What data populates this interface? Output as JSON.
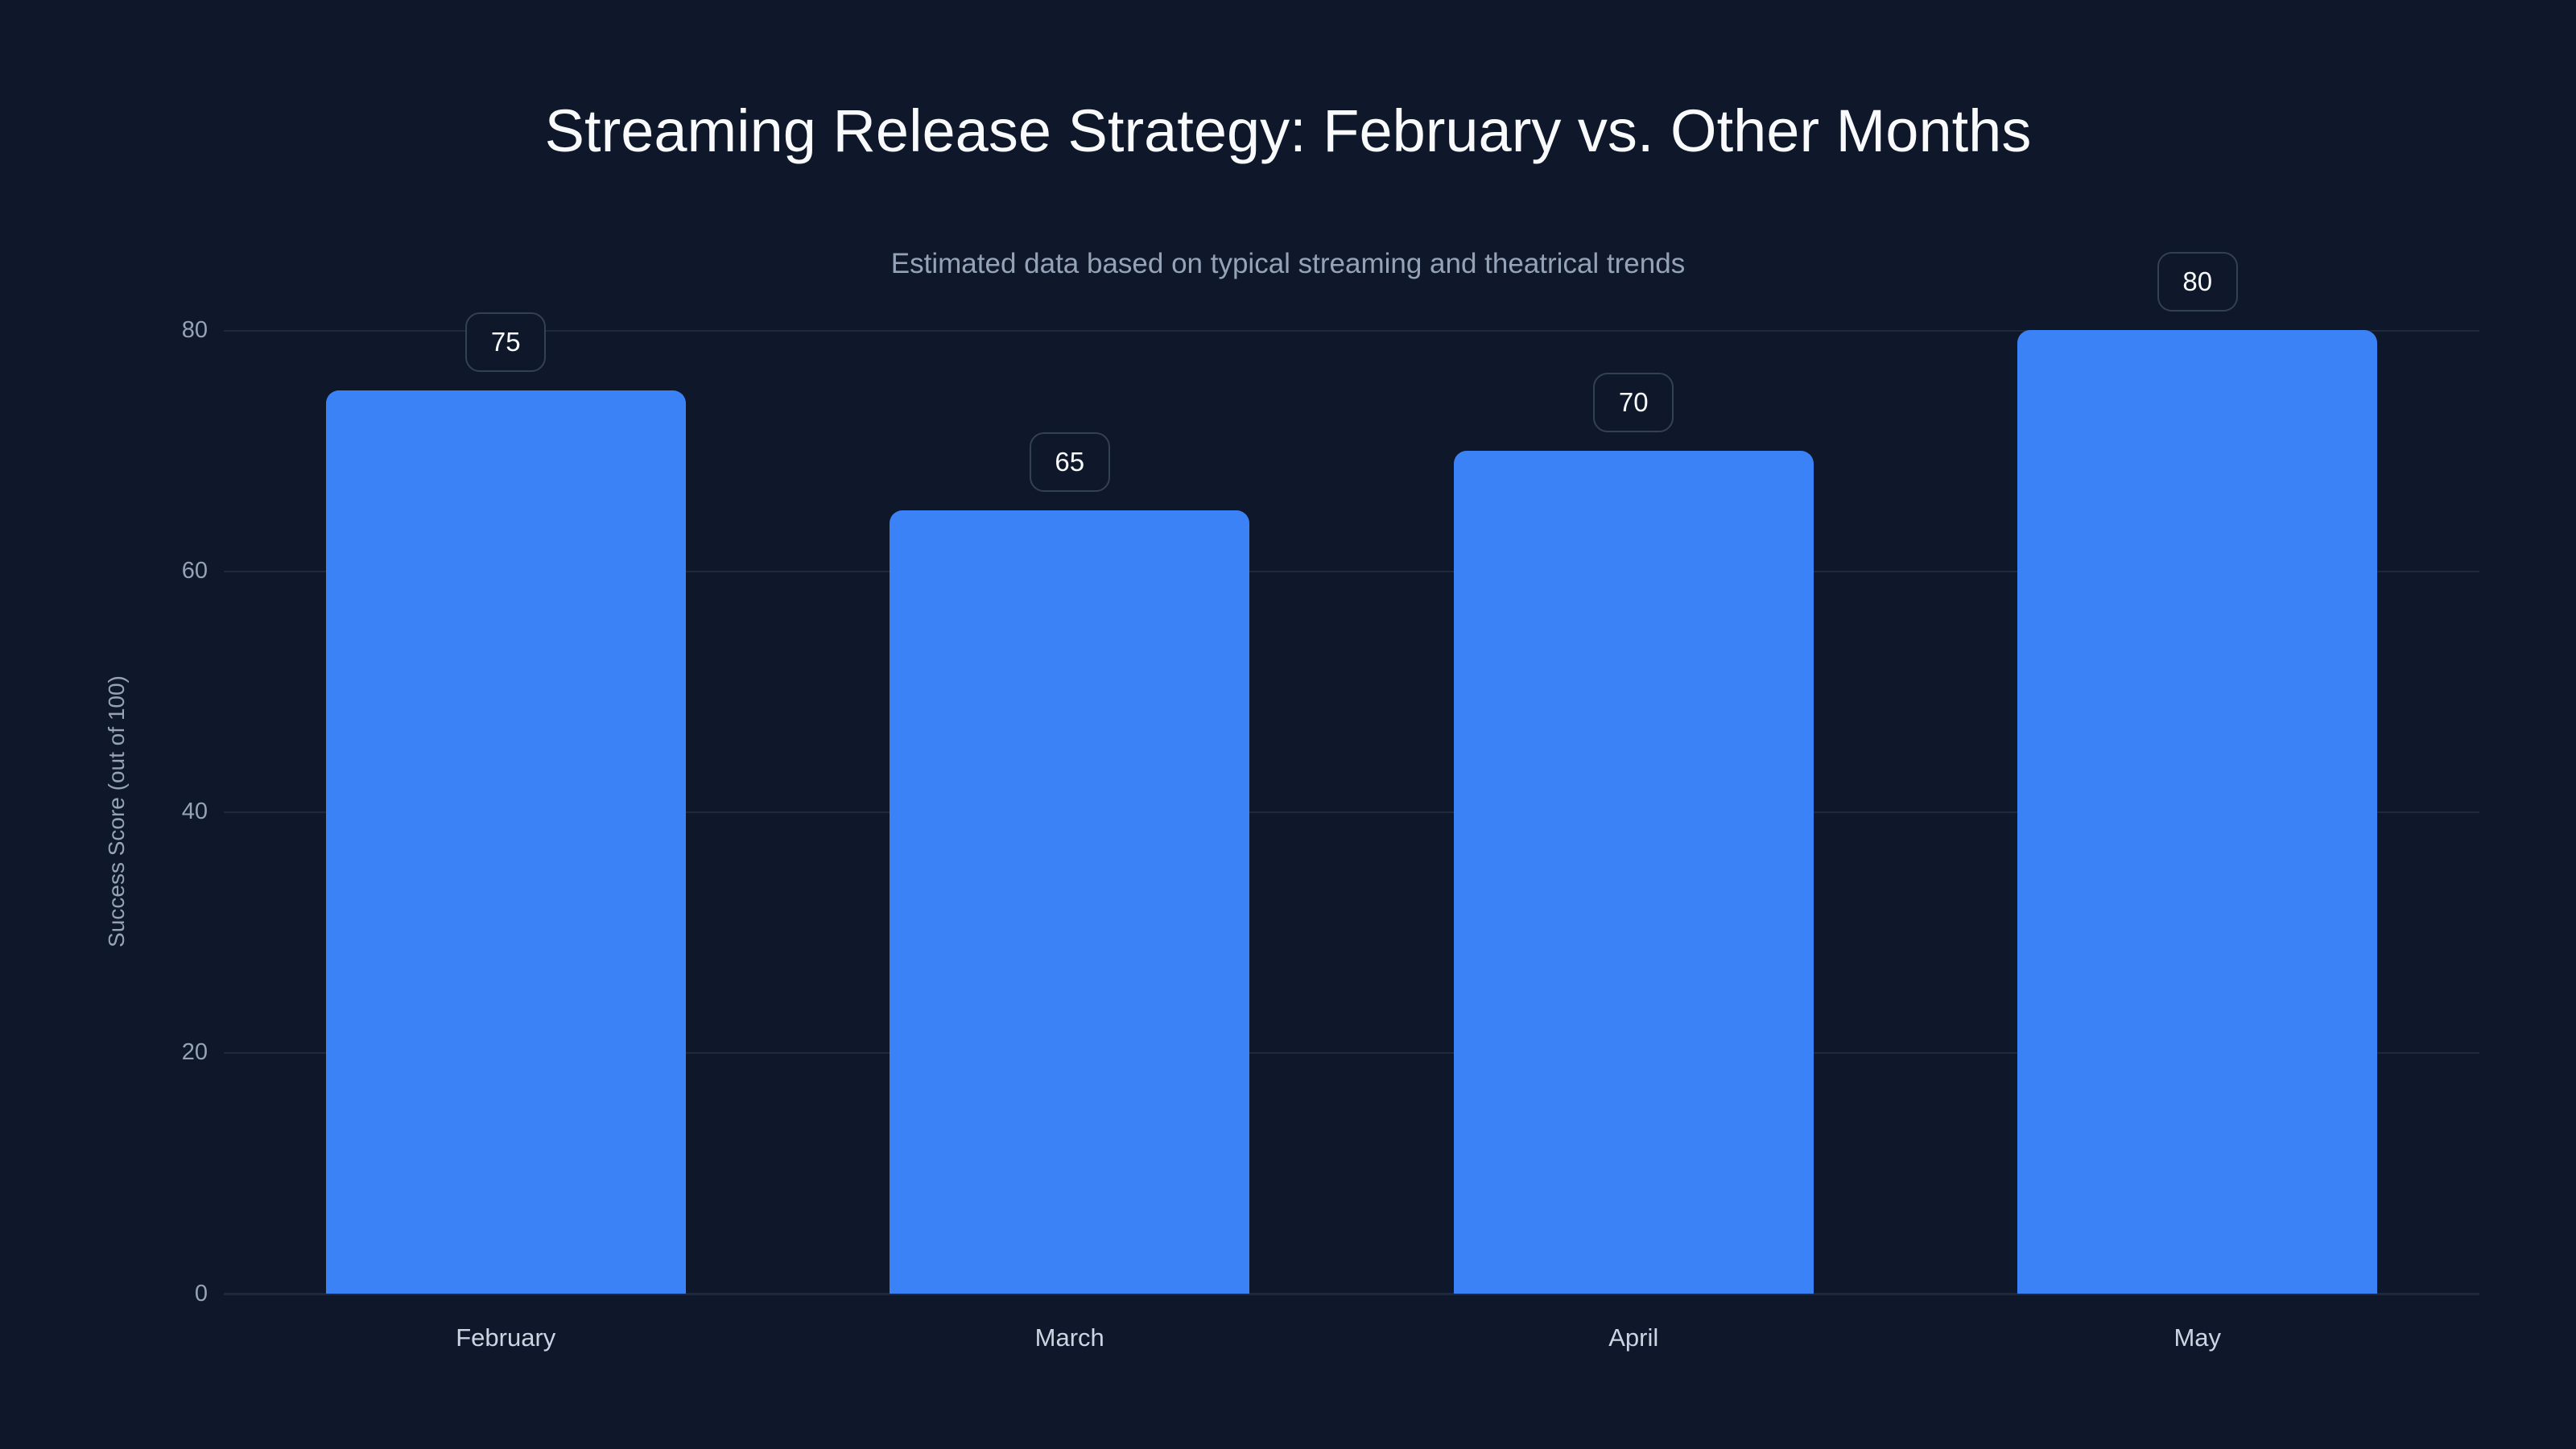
{
  "chart_data": {
    "type": "bar",
    "title": "Streaming Release Strategy: February vs. Other Months",
    "subtitle": "Estimated data based on typical streaming and theatrical trends",
    "xlabel": "",
    "ylabel": "Success Score (out of 100)",
    "categories": [
      "February",
      "March",
      "April",
      "May"
    ],
    "values": [
      75,
      65,
      70,
      80
    ],
    "value_labels": [
      "75",
      "65",
      "70",
      "80"
    ],
    "ylim": [
      0,
      80
    ],
    "yticks": [
      "0",
      "20",
      "40",
      "60",
      "80"
    ],
    "grid": true,
    "legend": "none",
    "colors": {
      "bar": "#3b82f6",
      "background": "#0f172a",
      "grid": "#1e293b"
    }
  }
}
